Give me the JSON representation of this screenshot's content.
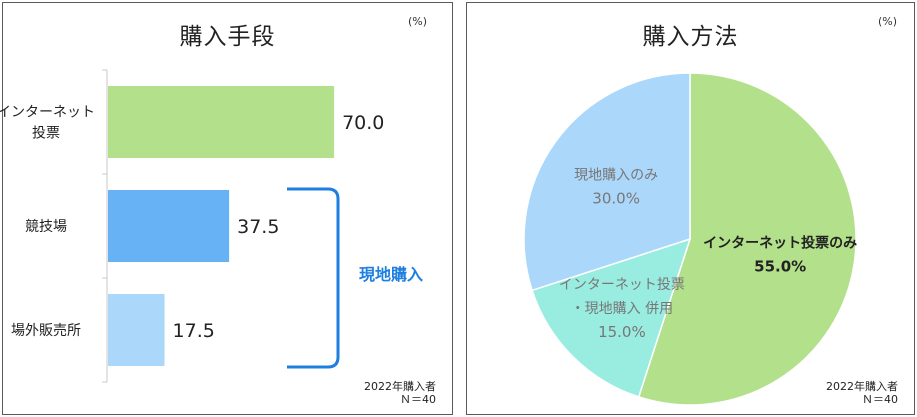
{
  "chart_data": [
    {
      "type": "bar",
      "orientation": "horizontal",
      "title": "購入手段",
      "unit": "(%)",
      "categories": [
        [
          "インターネット",
          "投票"
        ],
        [
          "競技場"
        ],
        [
          "場外販売所"
        ]
      ],
      "values": [
        70.0,
        37.5,
        17.5
      ],
      "value_labels": [
        "70.0",
        "37.5",
        "17.5"
      ],
      "colors": [
        "#b3e08a",
        "#66b2f5",
        "#abd7fb"
      ],
      "xlim": [
        0,
        100
      ],
      "bracket_label": "現地購入",
      "bracket_color": "#1f7fe0",
      "note": [
        "2022年購入者",
        "Ｎ＝40"
      ]
    },
    {
      "type": "pie",
      "title": "購入方法",
      "unit": "(%)",
      "labels": [
        [
          "インターネット投票のみ"
        ],
        [
          "インターネット投票",
          "・現地購入 併用"
        ],
        [
          "現地購入のみ"
        ]
      ],
      "values": [
        55.0,
        15.0,
        30.0
      ],
      "value_labels": [
        "55.0%",
        "15.0%",
        "30.0%"
      ],
      "colors": [
        "#b3e08a",
        "#99ece0",
        "#abd7fb"
      ],
      "note": [
        "2022年購入者",
        "Ｎ＝40"
      ]
    }
  ]
}
